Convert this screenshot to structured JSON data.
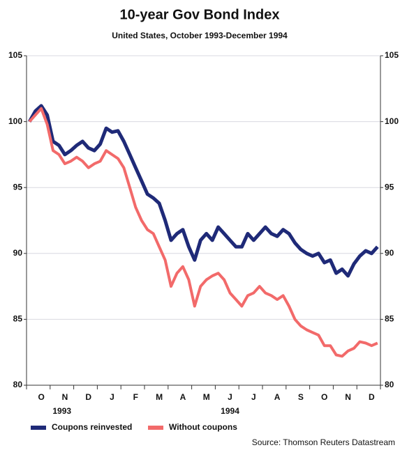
{
  "chart_data": {
    "type": "line",
    "title": "10-year Gov Bond Index",
    "subtitle": "United States, October 1993-December 1994",
    "source": "Source: Thomson Reuters Datastream",
    "annotations": [
      "1993",
      "1994"
    ],
    "categories": [
      null,
      null,
      "O",
      null,
      null,
      null,
      "N",
      null,
      null,
      null,
      "D",
      null,
      null,
      null,
      "J",
      null,
      null,
      null,
      "F",
      null,
      null,
      null,
      "M",
      null,
      null,
      null,
      "A",
      null,
      null,
      null,
      "M",
      null,
      null,
      null,
      "J",
      null,
      null,
      null,
      "J",
      null,
      null,
      null,
      "A",
      null,
      null,
      null,
      "S",
      null,
      null,
      null,
      "O",
      null,
      null,
      null,
      "N",
      null,
      null,
      null,
      "D",
      null
    ],
    "series": [
      {
        "name": "Coupons reinvested",
        "color": "#1f2a78",
        "values": [
          100,
          100.8,
          101.2,
          100.5,
          98.5,
          98.2,
          97.5,
          97.8,
          98.2,
          98.5,
          98.0,
          97.8,
          98.3,
          99.5,
          99.2,
          99.3,
          98.5,
          97.5,
          96.5,
          95.5,
          94.5,
          94.2,
          93.8,
          92.5,
          91.0,
          91.5,
          91.8,
          90.5,
          89.5,
          91.0,
          91.5,
          91.0,
          92.0,
          91.5,
          91.0,
          90.5,
          90.5,
          91.5,
          91.0,
          91.5,
          92.0,
          91.5,
          91.3,
          91.8,
          91.5,
          90.8,
          90.3,
          90.0,
          89.8,
          90.0,
          89.3,
          89.5,
          88.5,
          88.8,
          88.3,
          89.2,
          89.8,
          90.2,
          90.0,
          90.5
        ]
      },
      {
        "name": "Without coupons",
        "color": "#f26a6a",
        "values": [
          100,
          100.5,
          101.0,
          99.8,
          97.8,
          97.5,
          96.8,
          97.0,
          97.3,
          97.0,
          96.5,
          96.8,
          97.0,
          97.8,
          97.5,
          97.2,
          96.5,
          95.0,
          93.5,
          92.5,
          91.8,
          91.5,
          90.5,
          89.5,
          87.5,
          88.5,
          89.0,
          88.0,
          86.0,
          87.5,
          88.0,
          88.3,
          88.5,
          88.0,
          87.0,
          86.5,
          86.0,
          86.8,
          87.0,
          87.5,
          87.0,
          86.8,
          86.5,
          86.8,
          86.0,
          85.0,
          84.5,
          84.2,
          84.0,
          83.8,
          83.0,
          83.0,
          82.3,
          82.2,
          82.6,
          82.8,
          83.3,
          83.2,
          83.0,
          83.2
        ]
      }
    ],
    "ylim": [
      80,
      105
    ],
    "yticks": [
      80,
      85,
      90,
      95,
      100,
      105
    ],
    "y2lim": [
      80,
      105
    ],
    "y2ticks": [
      80,
      85,
      90,
      95,
      100,
      105
    ],
    "grid": true,
    "legend": "bottom-left"
  }
}
